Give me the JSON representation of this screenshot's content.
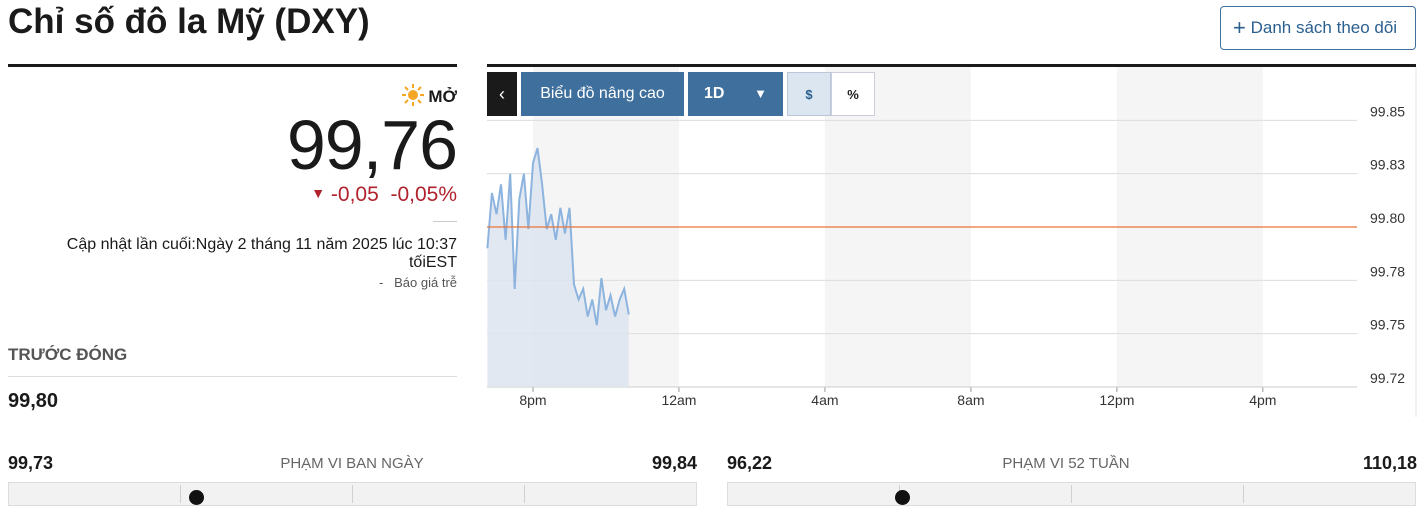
{
  "header": {
    "title": "Chỉ số đô la Mỹ (DXY)",
    "watchlist_button": "Danh sách theo dõi"
  },
  "quote": {
    "status": "MỞ",
    "price": "99,76",
    "change": "-0,05",
    "change_percent": "-0,05%",
    "updated": "Cập nhật lần cuối:Ngày 2 tháng 11 năm 2025 lúc 10:37 tốiEST",
    "delay_marker": "-",
    "delay": "Báo giá trễ"
  },
  "previous_close": {
    "label": "TRƯỚC ĐÓNG",
    "value": "99,80"
  },
  "ranges": [
    {
      "low": "99,73",
      "label": "PHẠM VI BAN NGÀY",
      "high": "99,84"
    },
    {
      "low": "96,22",
      "label": "PHẠM VI 52 TUẦN",
      "high": "110,18"
    }
  ],
  "chart_toolbar": {
    "advanced": "Biểu đồ nâng cao",
    "period": "1D",
    "dollar": "$",
    "percent": "%"
  },
  "chart_data": {
    "type": "line",
    "x": [
      18.75,
      18.875,
      19,
      19.125,
      19.25,
      19.375,
      19.5,
      19.625,
      19.75,
      19.875,
      20,
      20.125,
      20.25,
      20.375,
      20.5,
      20.625,
      20.75,
      20.875,
      21,
      21.125,
      21.25,
      21.375,
      21.5,
      21.625,
      21.75,
      21.875,
      22,
      22.125,
      22.25,
      22.375,
      22.5,
      22.625
    ],
    "series": [
      {
        "color": "#8db4de",
        "values": [
          99.79,
          99.816,
          99.806,
          99.82,
          99.794,
          99.825,
          99.771,
          99.813,
          99.825,
          99.799,
          99.83,
          99.837,
          99.82,
          99.799,
          99.806,
          99.794,
          99.809,
          99.797,
          99.809,
          99.773,
          99.766,
          99.771,
          99.758,
          99.766,
          99.754,
          99.776,
          99.761,
          99.768,
          99.758,
          99.766,
          99.771,
          99.759
        ]
      }
    ],
    "xlim": [
      18.74,
      42.58
    ],
    "xticks": [
      {
        "value": 20,
        "label": "8pm"
      },
      {
        "value": 24,
        "label": "12am"
      },
      {
        "value": 28,
        "label": "4am"
      },
      {
        "value": 32,
        "label": "8am"
      },
      {
        "value": 36,
        "label": "12pm"
      },
      {
        "value": 40,
        "label": "4pm"
      }
    ],
    "ylim": [
      99.725,
      99.875
    ],
    "yticks": [
      {
        "value": 99.725,
        "label": "99.72"
      },
      {
        "value": 99.75,
        "label": "99.75"
      },
      {
        "value": 99.775,
        "label": "99.78"
      },
      {
        "value": 99.8,
        "label": "99.80"
      },
      {
        "value": 99.825,
        "label": "99.83"
      },
      {
        "value": 99.85,
        "label": "99.85"
      }
    ],
    "grid": true,
    "reference_color": "#e8743b"
  }
}
